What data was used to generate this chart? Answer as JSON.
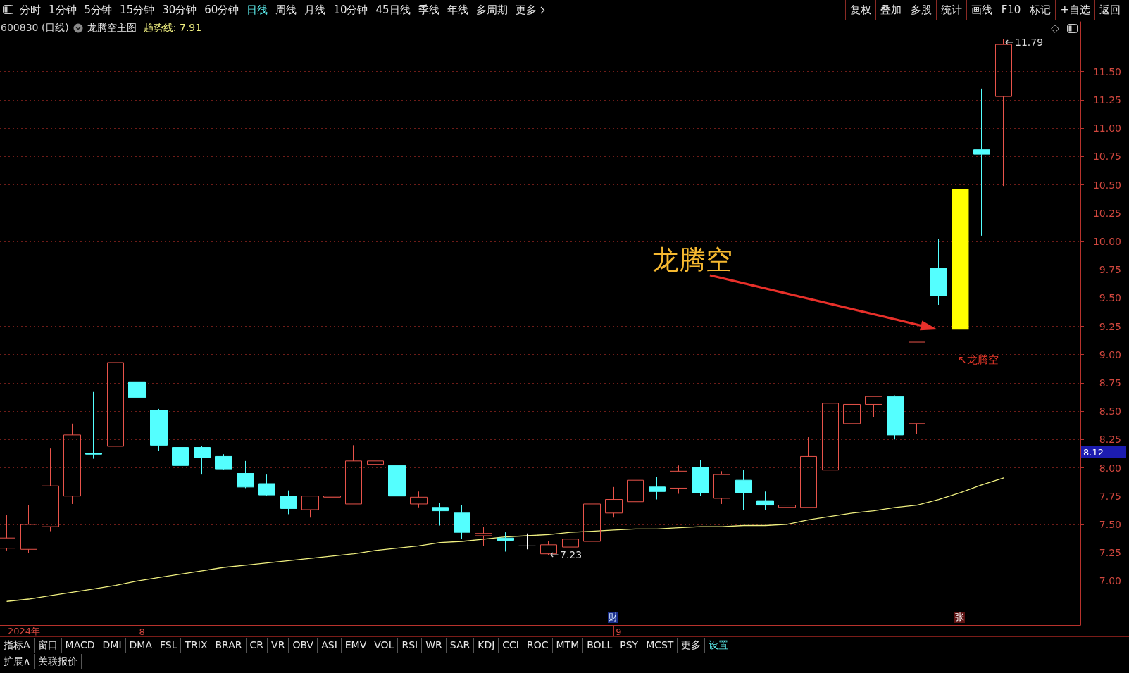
{
  "chart_data": {
    "type": "candlestick",
    "title": "600830 (日线)",
    "subtitle": "龙腾空主图",
    "categories": [
      null,
      null,
      null,
      null,
      null,
      null,
      "8",
      null,
      null,
      null,
      null,
      null,
      null,
      null,
      null,
      null,
      null,
      null,
      null,
      null,
      null,
      null,
      null,
      null,
      null,
      null,
      null,
      null,
      "9",
      null,
      null,
      null,
      null,
      null,
      null,
      null,
      null,
      null,
      null,
      null,
      null,
      null,
      null,
      null,
      null,
      null,
      null
    ],
    "ohlc": [
      [
        7.29,
        7.58,
        7.27,
        7.38
      ],
      [
        7.28,
        7.67,
        7.25,
        7.5
      ],
      [
        7.48,
        8.17,
        7.44,
        7.84
      ],
      [
        7.75,
        8.39,
        7.68,
        8.29
      ],
      [
        8.13,
        8.67,
        8.08,
        8.12
      ],
      [
        8.19,
        8.93,
        8.19,
        8.93
      ],
      [
        8.76,
        8.88,
        8.51,
        8.62
      ],
      [
        8.51,
        8.52,
        8.15,
        8.2
      ],
      [
        8.18,
        8.28,
        8.02,
        8.02
      ],
      [
        8.18,
        8.19,
        7.94,
        8.09
      ],
      [
        8.1,
        8.12,
        7.98,
        7.99
      ],
      [
        7.95,
        8.06,
        7.82,
        7.83
      ],
      [
        7.86,
        7.94,
        7.75,
        7.76
      ],
      [
        7.75,
        7.8,
        7.59,
        7.64
      ],
      [
        7.63,
        7.75,
        7.56,
        7.75
      ],
      [
        7.74,
        7.86,
        7.66,
        7.75
      ],
      [
        7.68,
        8.2,
        7.68,
        8.06
      ],
      [
        8.03,
        8.12,
        7.93,
        8.06
      ],
      [
        8.02,
        8.07,
        7.69,
        7.75
      ],
      [
        7.68,
        7.79,
        7.65,
        7.74
      ],
      [
        7.65,
        7.69,
        7.49,
        7.62
      ],
      [
        7.6,
        7.67,
        7.37,
        7.43
      ],
      [
        7.4,
        7.48,
        7.31,
        7.42
      ],
      [
        7.38,
        7.43,
        7.26,
        7.36
      ],
      [
        7.31,
        7.42,
        7.28,
        7.31
      ],
      [
        7.24,
        7.35,
        7.23,
        7.32
      ],
      [
        7.3,
        7.44,
        7.3,
        7.37
      ],
      [
        7.35,
        7.88,
        7.35,
        7.68
      ],
      [
        7.6,
        7.83,
        7.56,
        7.72
      ],
      [
        7.7,
        7.97,
        7.69,
        7.89
      ],
      [
        7.83,
        7.92,
        7.72,
        7.79
      ],
      [
        7.82,
        8.02,
        7.77,
        7.97
      ],
      [
        8,
        8.07,
        7.75,
        7.78
      ],
      [
        7.73,
        7.97,
        7.68,
        7.94
      ],
      [
        7.89,
        7.98,
        7.63,
        7.78
      ],
      [
        7.71,
        7.79,
        7.63,
        7.67
      ],
      [
        7.65,
        7.73,
        7.56,
        7.67
      ],
      [
        7.65,
        8.27,
        7.65,
        8.1
      ],
      [
        7.98,
        8.8,
        7.94,
        8.57
      ],
      [
        8.39,
        8.69,
        8.39,
        8.56
      ],
      [
        8.56,
        8.63,
        8.45,
        8.63
      ],
      [
        8.63,
        8.64,
        8.25,
        8.29
      ],
      [
        8.39,
        9.11,
        8.3,
        9.11
      ],
      [
        9.76,
        10.02,
        9.44,
        9.52
      ],
      null,
      [
        10.81,
        11.35,
        10.05,
        10.77
      ],
      [
        11.28,
        11.79,
        10.49,
        11.74
      ]
    ],
    "colors": [
      "#e8534a",
      "#e8534a",
      "#e8534a",
      "#e8534a",
      "#54ffff",
      "#e8534a",
      "#54ffff",
      "#54ffff",
      "#54ffff",
      "#54ffff",
      "#54ffff",
      "#54ffff",
      "#54ffff",
      "#54ffff",
      "#e8534a",
      "#e8534a",
      "#e8534a",
      "#e8534a",
      "#54ffff",
      "#e8534a",
      "#54ffff",
      "#54ffff",
      "#e8534a",
      "#54ffff",
      "#ffffff",
      "#e8534a",
      "#e8534a",
      "#e8534a",
      "#e8534a",
      "#e8534a",
      "#54ffff",
      "#e8534a",
      "#54ffff",
      "#e8534a",
      "#54ffff",
      "#54ffff",
      "#e8534a",
      "#e8534a",
      "#e8534a",
      "#e8534a",
      "#e8534a",
      "#54ffff",
      "#e8534a",
      "#54ffff",
      null,
      "#54ffff",
      "#e8534a"
    ],
    "series": [
      {
        "name": "趋势线: 7.91",
        "type": "line",
        "color": "#f0f080",
        "values": [
          6.82,
          6.84,
          6.87,
          6.9,
          6.93,
          6.96,
          7,
          7.03,
          7.06,
          7.09,
          7.12,
          7.14,
          7.16,
          7.18,
          7.2,
          7.22,
          7.24,
          7.27,
          7.29,
          7.31,
          7.34,
          7.35,
          7.37,
          7.39,
          7.4,
          7.41,
          7.43,
          7.44,
          7.45,
          7.46,
          7.46,
          7.47,
          7.48,
          7.48,
          7.49,
          7.49,
          7.5,
          7.54,
          7.57,
          7.6,
          7.62,
          7.65,
          7.67,
          7.72,
          7.78,
          7.85,
          7.91
        ]
      },
      {
        "type": "bar",
        "color": "#ffff00",
        "values": [
          null,
          null,
          null,
          null,
          null,
          null,
          null,
          null,
          null,
          null,
          null,
          null,
          null,
          null,
          null,
          null,
          null,
          null,
          null,
          null,
          null,
          null,
          null,
          null,
          null,
          null,
          null,
          null,
          null,
          null,
          null,
          null,
          null,
          null,
          null,
          null,
          null,
          null,
          null,
          null,
          null,
          null,
          null,
          null,
          1.24,
          null,
          null
        ],
        "base": [
          null,
          null,
          null,
          null,
          null,
          null,
          null,
          null,
          null,
          null,
          null,
          null,
          null,
          null,
          null,
          null,
          null,
          null,
          null,
          null,
          null,
          null,
          null,
          null,
          null,
          null,
          null,
          null,
          null,
          null,
          null,
          null,
          null,
          null,
          null,
          null,
          null,
          null,
          null,
          null,
          null,
          null,
          null,
          null,
          9.22,
          null,
          null
        ]
      }
    ],
    "ylim": [
      6.61,
      11.94
    ],
    "yticks": [
      {
        "value": 7,
        "label": "7.00"
      },
      7.25,
      {
        "value": 7.5,
        "label": "7.50"
      },
      7.75,
      {
        "value": 8,
        "label": "8.00"
      },
      8.25,
      {
        "value": 8.5,
        "label": "8.50"
      },
      8.75,
      {
        "value": 9,
        "label": "9.00"
      },
      9.25,
      {
        "value": 9.5,
        "label": "9.50"
      },
      9.75,
      {
        "value": 10,
        "label": "10.00"
      },
      10.25,
      {
        "value": 10.5,
        "label": "10.50"
      },
      10.75,
      {
        "value": 11,
        "label": "11.00"
      },
      11.25,
      {
        "value": 11.5,
        "label": "11.50"
      }
    ],
    "grid": "y",
    "annotations": [
      "分时 1分钟 5分钟 15分钟 30分钟 60分钟 日线 周线 月线 10分钟 45日线 季线 年线 多周期 更多",
      "复权 叠加 多股 统计 画线 F10 标记 +自选 返回",
      "指标A 窗口 MACD DMI DMA FSL TRIX BRAR CR VR OBV ASI EMV VOL RSI WR SAR KDJ CCI ROC MTM BOLL PSY MCST 更多 设置",
      "扩展∧ 关联报价",
      "龙腾空",
      "↖龙腾空",
      "财",
      "张",
      "11.79",
      "7.23",
      "8.12",
      "2024年"
    ]
  }
}
